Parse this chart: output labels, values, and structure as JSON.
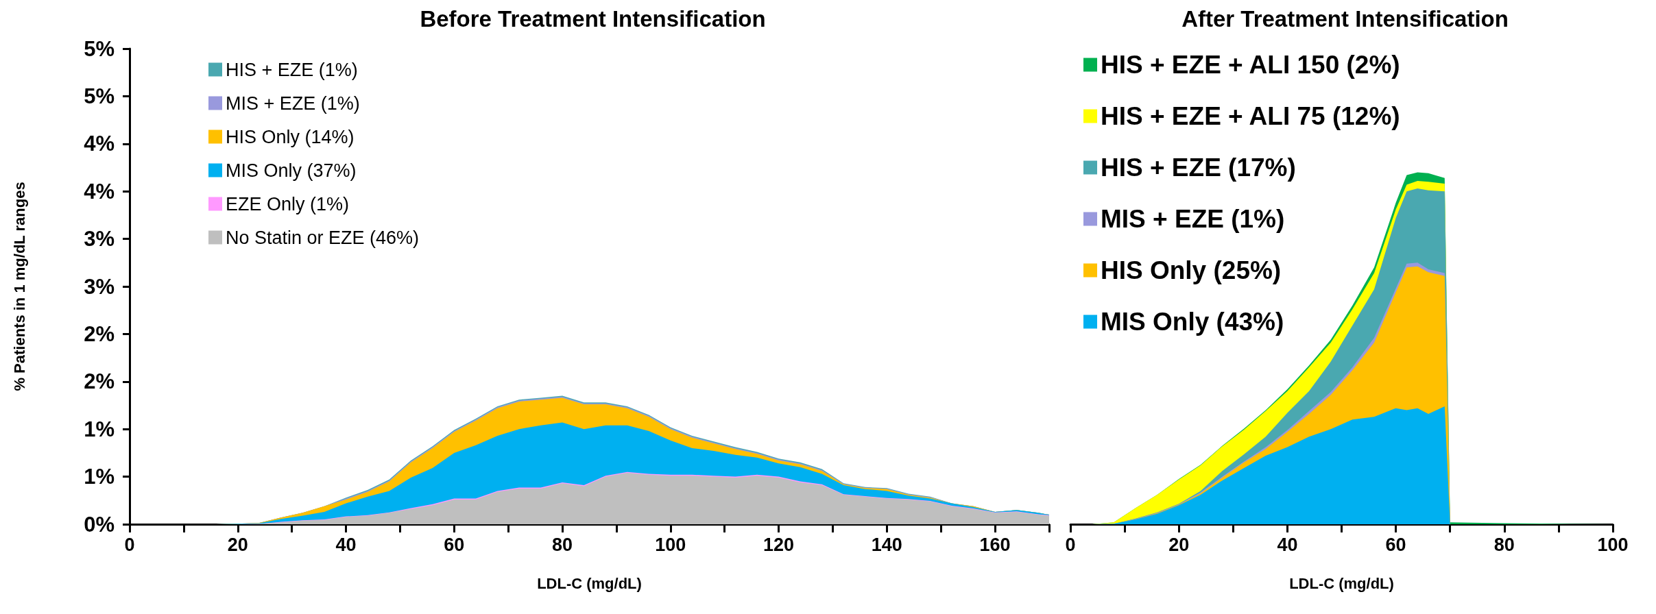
{
  "chart_data": [
    {
      "type": "area",
      "title": "Before Treatment Intensification",
      "xlabel": "LDL-C (mg/dL)",
      "ylabel": "% Patients in 1 mg/dL ranges",
      "stacked": true,
      "legend": "top left",
      "grid": false,
      "x": [
        0,
        4,
        8,
        12,
        16,
        20,
        24,
        28,
        32,
        36,
        40,
        44,
        48,
        52,
        56,
        60,
        64,
        68,
        72,
        76,
        80,
        84,
        88,
        92,
        96,
        100,
        104,
        108,
        112,
        116,
        120,
        124,
        128,
        132,
        136,
        140,
        144,
        148,
        152,
        156,
        160,
        164,
        168,
        170
      ],
      "xlim": [
        0,
        170
      ],
      "xticks": [
        0,
        {
          "value": 10,
          "label": null
        },
        20,
        {
          "value": 30,
          "label": null
        },
        40,
        {
          "value": 50,
          "label": null
        },
        60,
        {
          "value": 70,
          "label": null
        },
        80,
        {
          "value": 90,
          "label": null
        },
        100,
        {
          "value": 110,
          "label": null
        },
        120,
        {
          "value": 130,
          "label": null
        },
        140,
        {
          "value": 150,
          "label": null
        },
        160,
        {
          "value": 170,
          "label": null
        }
      ],
      "ylim": [
        0,
        5
      ],
      "yticks": [
        {
          "value": 0,
          "label": "0%"
        },
        {
          "value": 0.5,
          "label": "1%"
        },
        {
          "value": 1,
          "label": "1%"
        },
        {
          "value": 1.5,
          "label": "2%"
        },
        {
          "value": 2,
          "label": "2%"
        },
        {
          "value": 2.5,
          "label": "3%"
        },
        {
          "value": 3,
          "label": "3%"
        },
        {
          "value": 3.5,
          "label": "4%"
        },
        {
          "value": 4,
          "label": "4%"
        },
        {
          "value": 4.5,
          "label": "5%"
        },
        {
          "value": 5,
          "label": "5%"
        }
      ],
      "series": [
        {
          "name": "No Statin or EZE (46%)",
          "color": "#bfbfbf",
          "values": [
            0,
            0,
            0,
            0,
            0,
            0,
            0.003,
            0.02,
            0.037,
            0.045,
            0.077,
            0.09,
            0.12,
            0.16,
            0.2,
            0.26,
            0.26,
            0.34,
            0.375,
            0.375,
            0.43,
            0.4,
            0.5,
            0.54,
            0.52,
            0.51,
            0.51,
            0.5,
            0.49,
            0.51,
            0.49,
            0.44,
            0.41,
            0.31,
            0.29,
            0.27,
            0.26,
            0.24,
            0.19,
            0.16,
            0.12,
            0.13,
            0.1,
            0.09
          ]
        },
        {
          "name": "EZE Only (1%)",
          "color": "#ff99ff",
          "values": [
            0,
            0,
            0,
            0,
            0,
            0,
            0,
            0.005,
            0.005,
            0.005,
            0.005,
            0.005,
            0.005,
            0.01,
            0.01,
            0.01,
            0.01,
            0.01,
            0.01,
            0.01,
            0.01,
            0.01,
            0.01,
            0.01,
            0.01,
            0.01,
            0.01,
            0.01,
            0.01,
            0.01,
            0.01,
            0.01,
            0.01,
            0.005,
            0.005,
            0.005,
            0.005,
            0.005,
            0.005,
            0.005,
            0.005,
            0.005,
            0.005,
            0.005
          ]
        },
        {
          "name": "MIS Only (37%)",
          "color": "#00b0f0",
          "values": [
            0,
            0,
            0,
            0,
            0,
            0.005,
            0.007,
            0.03,
            0.048,
            0.08,
            0.138,
            0.195,
            0.225,
            0.32,
            0.38,
            0.48,
            0.56,
            0.58,
            0.615,
            0.655,
            0.63,
            0.59,
            0.53,
            0.49,
            0.45,
            0.36,
            0.28,
            0.26,
            0.23,
            0.18,
            0.14,
            0.15,
            0.11,
            0.095,
            0.075,
            0.075,
            0.035,
            0.025,
            0.025,
            0.015,
            0.005,
            0.015,
            0.015,
            0.005
          ]
        },
        {
          "name": "HIS Only (14%)",
          "color": "#ffc000",
          "values": [
            0,
            0,
            0,
            0,
            0,
            0,
            0.005,
            0.015,
            0.03,
            0.06,
            0.04,
            0.05,
            0.1,
            0.16,
            0.21,
            0.22,
            0.26,
            0.29,
            0.29,
            0.27,
            0.26,
            0.26,
            0.22,
            0.18,
            0.15,
            0.12,
            0.11,
            0.08,
            0.06,
            0.04,
            0.03,
            0.03,
            0.03,
            0.01,
            0.01,
            0.02,
            0.01,
            0.01,
            0,
            0.01,
            0,
            0,
            0,
            0
          ]
        },
        {
          "name": "MIS + EZE (1%)",
          "color": "#9999dd",
          "values": [
            0,
            0,
            0,
            0,
            0,
            0,
            0,
            0,
            0,
            0,
            0.01,
            0.01,
            0.01,
            0.01,
            0.01,
            0.01,
            0.01,
            0.01,
            0.01,
            0.01,
            0.01,
            0.01,
            0.01,
            0.01,
            0.01,
            0.01,
            0.01,
            0.01,
            0.01,
            0.01,
            0.01,
            0.01,
            0.01,
            0.005,
            0.005,
            0.005,
            0.005,
            0.005,
            0,
            0,
            0,
            0,
            0,
            0
          ]
        },
        {
          "name": "HIS + EZE (1%)",
          "color": "#4aa8b0",
          "values": [
            0,
            0,
            0,
            0,
            0,
            0,
            0,
            0,
            0,
            0,
            0.01,
            0.01,
            0.01,
            0.01,
            0.01,
            0.01,
            0.01,
            0.01,
            0.01,
            0.01,
            0.01,
            0.01,
            0.01,
            0.01,
            0.01,
            0.01,
            0.01,
            0.01,
            0.01,
            0.01,
            0.01,
            0.01,
            0.01,
            0.005,
            0.005,
            0.005,
            0.005,
            0.005,
            0,
            0,
            0,
            0,
            0,
            0
          ]
        }
      ]
    },
    {
      "type": "area",
      "title": "After Treatment Intensification",
      "xlabel": "LDL-C (mg/dL)",
      "stacked": true,
      "legend": "top left",
      "grid": false,
      "tick_labels": "x",
      "x": [
        0,
        4,
        8,
        12,
        16,
        20,
        24,
        28,
        32,
        36,
        40,
        44,
        48,
        52,
        56,
        60,
        62,
        64,
        66,
        69,
        70,
        80,
        90,
        100
      ],
      "xlim": [
        0,
        100
      ],
      "xticks": [
        0,
        {
          "value": 10,
          "label": null
        },
        20,
        {
          "value": 30,
          "label": null
        },
        40,
        {
          "value": 50,
          "label": null
        },
        60,
        {
          "value": 70,
          "label": null
        },
        80,
        {
          "value": 90,
          "label": null
        },
        100
      ],
      "ylim": [
        0,
        5
      ],
      "series": [
        {
          "name": "MIS Only (43%)",
          "color": "#00b0f0",
          "values": [
            0,
            0,
            0.005,
            0.05,
            0.11,
            0.2,
            0.31,
            0.46,
            0.59,
            0.72,
            0.81,
            0.92,
            1.0,
            1.1,
            1.13,
            1.22,
            1.2,
            1.22,
            1.16,
            1.24,
            0,
            0,
            0,
            0
          ]
        },
        {
          "name": "HIS Only (25%)",
          "color": "#ffc000",
          "values": [
            0,
            0,
            0,
            0,
            0.005,
            0.005,
            0.015,
            0.03,
            0.06,
            0.07,
            0.16,
            0.24,
            0.36,
            0.52,
            0.78,
            1.22,
            1.5,
            1.49,
            1.49,
            1.37,
            0,
            0,
            0,
            0
          ]
        },
        {
          "name": "MIS + EZE (1%)",
          "color": "#9999dd",
          "values": [
            0,
            0,
            0,
            0.005,
            0.005,
            0.005,
            0.01,
            0.01,
            0.01,
            0.02,
            0.02,
            0.03,
            0.03,
            0.03,
            0.05,
            0.04,
            0.04,
            0.04,
            0.03,
            0.03,
            0,
            0,
            0,
            0
          ]
        },
        {
          "name": "HIS + EZE (17%)",
          "color": "#4aa8b0",
          "values": [
            0,
            0,
            0,
            0.005,
            0.005,
            0.005,
            0.015,
            0.06,
            0.075,
            0.11,
            0.18,
            0.21,
            0.32,
            0.44,
            0.51,
            0.74,
            0.76,
            0.78,
            0.83,
            0.86,
            0,
            0,
            0,
            0
          ]
        },
        {
          "name": "HIS + EZE + ALI 75 (12%)",
          "color": "#ffff00",
          "values": [
            0,
            0,
            0.015,
            0.11,
            0.185,
            0.255,
            0.27,
            0.26,
            0.26,
            0.27,
            0.23,
            0.25,
            0.2,
            0.17,
            0.17,
            0.09,
            0.07,
            0.08,
            0.09,
            0.08,
            0,
            0,
            0,
            0
          ]
        },
        {
          "name": "HIS + EZE + ALI 150 (2%)",
          "color": "#00b050",
          "values": [
            0,
            0,
            0,
            0,
            0,
            0.005,
            0.005,
            0.005,
            0.01,
            0.01,
            0.02,
            0.02,
            0.03,
            0.04,
            0.06,
            0.07,
            0.1,
            0.09,
            0.09,
            0.06,
            0.02,
            0.01,
            0.005,
            0
          ]
        }
      ]
    }
  ]
}
